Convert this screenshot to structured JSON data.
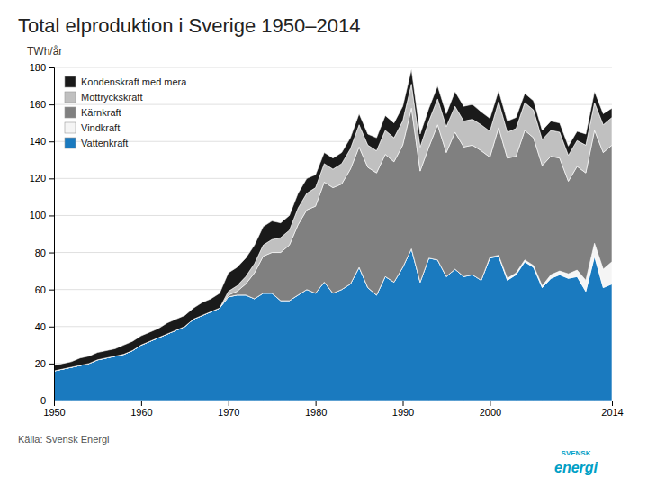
{
  "chart_data": {
    "type": "area",
    "stacked": true,
    "title": "Total elproduktion i Sverige 1950–2014",
    "y_label": "TWh/år",
    "annotations": [
      "Källa: Svensk Energi",
      "SVENSK",
      "energi"
    ],
    "x": [
      1950,
      1951,
      1952,
      1953,
      1954,
      1955,
      1956,
      1957,
      1958,
      1959,
      1960,
      1961,
      1962,
      1963,
      1964,
      1965,
      1966,
      1967,
      1968,
      1969,
      1970,
      1971,
      1972,
      1973,
      1974,
      1975,
      1976,
      1977,
      1978,
      1979,
      1980,
      1981,
      1982,
      1983,
      1984,
      1985,
      1986,
      1987,
      1988,
      1989,
      1990,
      1991,
      1992,
      1993,
      1994,
      1995,
      1996,
      1997,
      1998,
      1999,
      2000,
      2001,
      2002,
      2003,
      2004,
      2005,
      2006,
      2007,
      2008,
      2009,
      2010,
      2011,
      2012,
      2013,
      2014
    ],
    "series": [
      {
        "name": "Vattenkraft",
        "color": "#1a7abf",
        "values": [
          16,
          17,
          18,
          19,
          20,
          22,
          23,
          24,
          25,
          27,
          30,
          32,
          34,
          36,
          38,
          40,
          44,
          46,
          48,
          50,
          56,
          57,
          57,
          55,
          58,
          58,
          54,
          54,
          57,
          60,
          58,
          64,
          58,
          60,
          63,
          72,
          61,
          57,
          67,
          64,
          72,
          82,
          64,
          77,
          76,
          67,
          71,
          67,
          68,
          65,
          77,
          78,
          65,
          68,
          75,
          72,
          61,
          66,
          68,
          66,
          67,
          59,
          78,
          61,
          63
        ]
      },
      {
        "name": "Vindkraft",
        "color": "#f5f5f5",
        "values": [
          0,
          0,
          0,
          0,
          0,
          0,
          0,
          0,
          0,
          0,
          0,
          0,
          0,
          0,
          0,
          0,
          0,
          0,
          0,
          0,
          0,
          0,
          0,
          0,
          0,
          0,
          0,
          0,
          0,
          0,
          0,
          0,
          0,
          0,
          0,
          0,
          0,
          0,
          0,
          0,
          0,
          0,
          0,
          0,
          0,
          0,
          0,
          0,
          0,
          0,
          0.5,
          0.5,
          1,
          1,
          1,
          1,
          1,
          2,
          2,
          2.5,
          3.5,
          6,
          7,
          10,
          12
        ]
      },
      {
        "name": "Kärnkraft",
        "color": "#808080",
        "values": [
          0,
          0,
          0,
          0,
          0,
          0,
          0,
          0,
          0,
          0,
          0,
          0,
          0,
          0,
          0,
          0,
          0,
          0,
          0,
          0,
          1,
          2,
          6,
          14,
          20,
          22,
          26,
          30,
          38,
          43,
          47,
          54,
          57,
          57,
          62,
          65,
          65,
          66,
          66,
          65,
          66,
          76,
          60,
          60,
          73,
          67,
          74,
          70,
          70,
          70,
          54,
          69,
          65,
          63,
          70,
          69,
          65,
          64,
          61,
          50,
          56,
          58,
          61,
          63,
          63
        ]
      },
      {
        "name": "Mottryckskraft",
        "color": "#c0c0c0",
        "values": [
          0,
          0,
          0,
          0,
          0,
          0,
          0,
          0,
          0,
          0,
          0,
          0,
          0,
          0,
          0,
          0,
          0,
          0,
          0,
          0,
          2,
          3,
          4,
          5,
          6,
          7,
          8,
          8,
          9,
          9,
          10,
          10,
          10,
          11,
          11,
          12,
          12,
          12,
          13,
          13,
          13,
          13,
          13,
          14,
          14,
          14,
          14,
          14,
          14,
          14,
          14,
          14,
          14,
          15,
          15,
          15,
          14,
          14,
          14,
          14,
          14,
          15,
          15,
          15,
          15
        ]
      },
      {
        "name": "Kondenskraft med mera",
        "color": "#1a1a1a",
        "values": [
          3,
          3,
          3,
          4,
          4,
          4,
          4,
          4,
          5,
          5,
          5,
          5,
          5,
          6,
          6,
          6,
          6,
          7,
          7,
          8,
          10,
          10,
          10,
          10,
          10,
          10,
          8,
          8,
          8,
          8,
          7,
          6,
          6,
          6,
          6,
          6,
          6,
          7,
          8,
          8,
          8,
          8,
          7,
          7,
          7,
          7,
          8,
          8,
          8,
          7,
          7,
          6,
          6,
          6,
          5,
          5,
          5,
          5,
          5,
          5,
          5,
          6,
          6,
          6,
          5
        ]
      }
    ],
    "xlim": [
      1950,
      2014
    ],
    "xticks": [
      1950,
      1960,
      1970,
      1980,
      1990,
      2000,
      2014
    ],
    "ylim": [
      0,
      180
    ],
    "yticks": [
      0,
      20,
      40,
      60,
      80,
      100,
      120,
      140,
      160,
      180
    ],
    "grid": true,
    "legend": "upper left"
  }
}
